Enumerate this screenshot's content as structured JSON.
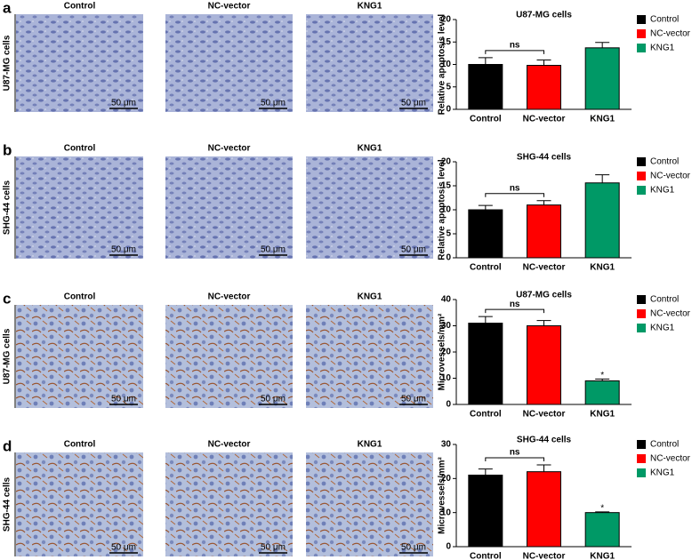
{
  "panels": [
    {
      "label": "a",
      "row_label": "U87-MG cells",
      "columns": [
        "Control",
        "NC-vector",
        "KNG1"
      ],
      "scale_bar": "50 μm"
    },
    {
      "label": "b",
      "row_label": "SHG-44 cells",
      "columns": [
        "Control",
        "NC-vector",
        "KNG1"
      ],
      "scale_bar": "50 μm"
    },
    {
      "label": "c",
      "row_label": "U87-MG cells",
      "columns": [
        "Control",
        "NC-vector",
        "KNG1"
      ],
      "scale_bar": "50 μm"
    },
    {
      "label": "d",
      "row_label": "SHG-44 cells",
      "columns": [
        "Control",
        "NC-vector",
        "KNG1"
      ],
      "scale_bar": "50 μm"
    }
  ],
  "chart_data": [
    {
      "type": "bar",
      "title": "U87-MG cells",
      "y_label": "Relative apoptosis level",
      "categories": [
        "Control",
        "NC-vector",
        "KNG1"
      ],
      "values": [
        10,
        9.8,
        13.7
      ],
      "errors": [
        1.5,
        1.2,
        1.2
      ],
      "colors": [
        "#000000",
        "#ff0000",
        "#009966"
      ],
      "ylim": [
        0,
        20
      ],
      "yticks": [
        0,
        5,
        10,
        15,
        20
      ],
      "bracket_label": "ns"
    },
    {
      "type": "bar",
      "title": "SHG-44 cells",
      "y_label": "Relative apoptosis level",
      "categories": [
        "Control",
        "NC-vector",
        "KNG1"
      ],
      "values": [
        10,
        11,
        15.6
      ],
      "errors": [
        0.9,
        0.9,
        1.7
      ],
      "colors": [
        "#000000",
        "#ff0000",
        "#009966"
      ],
      "ylim": [
        0,
        20
      ],
      "yticks": [
        0,
        5,
        10,
        15,
        20
      ],
      "bracket_label": "ns"
    },
    {
      "type": "bar",
      "title": "U87-MG cells",
      "y_label": "Microvessels/mm²",
      "categories": [
        "Control",
        "NC-vector",
        "KNG1"
      ],
      "values": [
        31,
        30,
        9
      ],
      "errors": [
        2.5,
        2,
        0.7
      ],
      "colors": [
        "#000000",
        "#ff0000",
        "#009966"
      ],
      "ylim": [
        0,
        40
      ],
      "yticks": [
        0,
        10,
        20,
        30,
        40
      ],
      "bracket_label": "ns",
      "star_label": "*"
    },
    {
      "type": "bar",
      "title": "SHG-44 cells",
      "y_label": "Microvessels/mm²",
      "categories": [
        "Control",
        "NC-vector",
        "KNG1"
      ],
      "values": [
        21,
        22,
        10
      ],
      "errors": [
        1.8,
        2,
        0.2
      ],
      "colors": [
        "#000000",
        "#ff0000",
        "#009966"
      ],
      "ylim": [
        0,
        30
      ],
      "yticks": [
        0,
        10,
        20,
        30
      ],
      "bracket_label": "ns",
      "star_label": "*"
    }
  ]
}
